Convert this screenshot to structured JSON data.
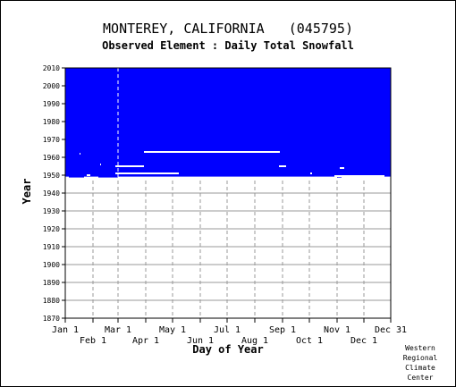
{
  "chart_data": {
    "type": "timeline",
    "title": "MONTEREY, CALIFORNIA   (045795)",
    "subtitle": "Observed Element : Daily Total Snowfall",
    "xlabel": "Day of Year",
    "ylabel": "Year",
    "ylim": [
      1870,
      2010
    ],
    "xlim_days": [
      1,
      365
    ],
    "y_ticks": [
      1870,
      1880,
      1890,
      1900,
      1910,
      1920,
      1930,
      1940,
      1950,
      1960,
      1970,
      1980,
      1990,
      2000,
      2010
    ],
    "month_ticks_top_row": [
      {
        "label": "Jan 1",
        "day": 1
      },
      {
        "label": "Mar 1",
        "day": 60
      },
      {
        "label": "May 1",
        "day": 121
      },
      {
        "label": "Jul 1",
        "day": 182
      },
      {
        "label": "Sep 1",
        "day": 244
      },
      {
        "label": "Nov 1",
        "day": 305
      },
      {
        "label": "Dec 31",
        "day": 365
      }
    ],
    "month_ticks_bottom_row": [
      {
        "label": "Feb 1",
        "day": 32
      },
      {
        "label": "Apr 1",
        "day": 91
      },
      {
        "label": "Jun 1",
        "day": 152
      },
      {
        "label": "Aug 1",
        "day": 213
      },
      {
        "label": "Oct 1",
        "day": 274
      },
      {
        "label": "Dec 1",
        "day": 335
      }
    ],
    "data_color": "#0000ff",
    "gap_color": "#ffffff",
    "record_period": {
      "start_year": 1948.7,
      "end_year": 2010,
      "start_day": 1,
      "end_day": 365
    },
    "missing_segments": [
      {
        "year": 1948.7,
        "start_day": 1,
        "end_day": 5
      },
      {
        "year": 1948.7,
        "start_day": 22,
        "end_day": 38
      },
      {
        "year": 1948.7,
        "start_day": 60,
        "end_day": 305
      },
      {
        "year": 1948.7,
        "start_day": 310,
        "end_day": 365
      },
      {
        "year": 1950,
        "start_day": 25,
        "end_day": 29
      },
      {
        "year": 1951,
        "start_day": 57,
        "end_day": 128
      },
      {
        "year": 1951,
        "start_day": 275,
        "end_day": 277
      },
      {
        "year": 1949.5,
        "start_day": 302,
        "end_day": 358
      },
      {
        "year": 1954,
        "start_day": 308,
        "end_day": 313
      },
      {
        "year": 1955,
        "start_day": 57,
        "end_day": 89
      },
      {
        "year": 1955,
        "start_day": 240,
        "end_day": 248
      },
      {
        "year": 1956,
        "start_day": 40,
        "end_day": 41
      },
      {
        "year": 1962,
        "start_day": 17,
        "end_day": 18
      },
      {
        "year": 1963,
        "start_day": 89,
        "end_day": 241
      }
    ],
    "marker_lines_day": [
      60
    ],
    "grid": true
  },
  "credit_lines": [
    "Western",
    "Regional",
    "Climate",
    "Center"
  ]
}
